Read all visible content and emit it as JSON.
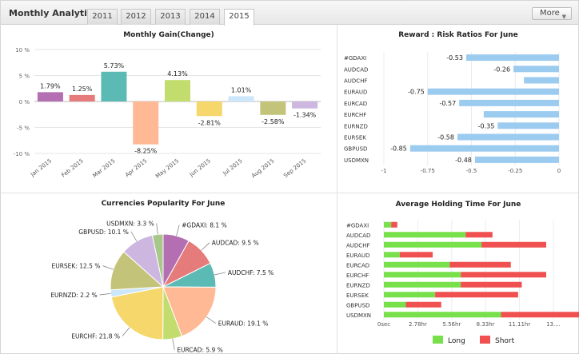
{
  "header": {
    "title": "Monthly Analytics",
    "tabs": [
      "2011",
      "2012",
      "2013",
      "2014",
      "2015"
    ],
    "active_tab": "2015",
    "more_label": "More"
  },
  "chart_data": [
    {
      "type": "bar",
      "title": "Monthly Gain(Change)",
      "categories": [
        "Jan 2015",
        "Feb 2015",
        "Mar 2015",
        "Apr 2015",
        "May 2015",
        "Jun 2015",
        "Jul 2015",
        "Aug 2015",
        "Sep 2015"
      ],
      "values": [
        1.79,
        1.25,
        5.73,
        -8.25,
        4.13,
        -2.81,
        1.01,
        -2.58,
        -1.34
      ],
      "value_labels": [
        "1.79%",
        "1.25%",
        "5.73%",
        "-8.25%",
        "4.13%",
        "-2.81%",
        "1.01%",
        "-2.58%",
        "-1.34%"
      ],
      "colors": [
        "#b36fb1",
        "#e57b7b",
        "#5cbab5",
        "#ffb994",
        "#c2dd6d",
        "#f5d76c",
        "#cce6fa",
        "#c3c47a",
        "#cdb7e0"
      ],
      "ylim": [
        -10,
        10
      ],
      "yticks": [
        10,
        5,
        0,
        -5,
        -10
      ],
      "ytick_labels": [
        "10 %",
        "5 %",
        "0 %",
        "-5 %",
        "-10 %"
      ],
      "grid": true
    },
    {
      "type": "bar",
      "title": "Reward : Risk Ratios For June",
      "categories": [
        "#GDAXI",
        "AUDCAD",
        "AUDCHF",
        "EURAUD",
        "EURCAD",
        "EURCHF",
        "EURNZD",
        "EURSEK",
        "GBPUSD",
        "USDMXN"
      ],
      "values": [
        -0.53,
        -0.26,
        -0.2,
        -0.75,
        -0.57,
        -0.43,
        -0.35,
        -0.58,
        -0.85,
        -0.48
      ],
      "value_labels": [
        "-0.53",
        "-0.26",
        "",
        "-0.75",
        "-0.57",
        "",
        "-0.35",
        "-0.58",
        "-0.85",
        "-0.48"
      ],
      "color": "#9ccbf0",
      "xlim": [
        -1,
        0
      ],
      "xticks": [
        -1,
        -0.75,
        -0.5,
        -0.25,
        0
      ],
      "xtick_labels": [
        "-1",
        "-0.75",
        "-0.5",
        "-0.25",
        "0"
      ],
      "grid": true
    },
    {
      "type": "pie",
      "title": "Currencies Popularity For June",
      "labels": [
        "#GDAXI",
        "AUDCAD",
        "AUDCHF",
        "EURAUD",
        "EURCAD",
        "EURCHF",
        "EURNZD",
        "EURSEK",
        "GBPUSD",
        "USDMXN"
      ],
      "values": [
        8.1,
        9.5,
        7.5,
        19.1,
        5.9,
        21.8,
        2.2,
        12.5,
        10.1,
        3.3
      ],
      "slice_labels": [
        "#GDAXI: 8.1 %",
        "AUDCAD: 9.5 %",
        "AUDCHF: 7.5 %",
        "EURAUD: 19.1 %",
        "EURCAD: 5.9 %",
        "EURCHF: 21.8 %",
        "EURNZD: 2.2 %",
        "EURSEK: 12.5 %",
        "GBPUSD: 10.1 %",
        "USDMXN: 3.3 %"
      ],
      "colors": [
        "#b36fb1",
        "#e57b7b",
        "#5cbab5",
        "#ffb994",
        "#c2dd6d",
        "#f5d76c",
        "#cce6fa",
        "#c3c47a",
        "#cdb7e0",
        "#a8c78a"
      ]
    },
    {
      "type": "bar",
      "title": "Average Holding Time For June",
      "categories": [
        "#GDAXI",
        "AUDCAD",
        "AUDCHF",
        "EURAUD",
        "EURCAD",
        "EURCHF",
        "EURNZD",
        "EURSEK",
        "GBPUSD",
        "USDMXN"
      ],
      "series": [
        {
          "name": "Long",
          "values": [
            0.6,
            6.7,
            8.0,
            1.3,
            5.4,
            6.3,
            6.3,
            4.2,
            1.8,
            9.6
          ]
        },
        {
          "name": "Short",
          "values": [
            0.5,
            2.2,
            5.3,
            2.7,
            5.0,
            7.0,
            5.0,
            6.8,
            2.9,
            7.2
          ]
        }
      ],
      "colors": [
        "#77e04a",
        "#f05050"
      ],
      "xlim": [
        0,
        13.89
      ],
      "xticks": [
        0,
        2.78,
        5.56,
        8.33,
        11.11,
        13.89
      ],
      "xtick_labels": [
        "0sec",
        "2.78hr",
        "5.56hr",
        "8.33hr",
        "11.11hr",
        "13...."
      ],
      "legend_position": "bottom"
    }
  ]
}
